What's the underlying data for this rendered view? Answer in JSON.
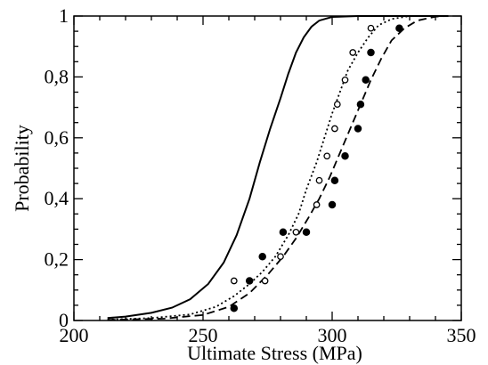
{
  "chart_data": {
    "type": "line",
    "title": "",
    "xlabel": "Ultimate Stress (MPa)",
    "ylabel": "Probability",
    "xlim": [
      200,
      350
    ],
    "ylim": [
      0,
      1
    ],
    "x_ticks": [
      200,
      250,
      300,
      350
    ],
    "x_tick_labels": [
      "200",
      "250",
      "300",
      "350"
    ],
    "y_ticks": [
      0,
      0.2,
      0.4,
      0.6,
      0.8,
      1
    ],
    "y_tick_labels": [
      "0",
      "0,2",
      "0,4",
      "0,6",
      "0,8",
      "1"
    ],
    "grid": false,
    "legend": "none",
    "series": [
      {
        "style": "solid",
        "color": "#000000",
        "points": [
          [
            213,
            0.008
          ],
          [
            220,
            0.013
          ],
          [
            230,
            0.025
          ],
          [
            238,
            0.042
          ],
          [
            245,
            0.07
          ],
          [
            252,
            0.12
          ],
          [
            258,
            0.19
          ],
          [
            263,
            0.28
          ],
          [
            268,
            0.4
          ],
          [
            272,
            0.52
          ],
          [
            276,
            0.63
          ],
          [
            280,
            0.73
          ],
          [
            283,
            0.81
          ],
          [
            286,
            0.88
          ],
          [
            289,
            0.93
          ],
          [
            292,
            0.965
          ],
          [
            295,
            0.985
          ],
          [
            300,
            0.997
          ],
          [
            310,
            1.0
          ],
          [
            345,
            1.0
          ]
        ]
      },
      {
        "style": "dotted",
        "color": "#000000",
        "points": [
          [
            213,
            0.003
          ],
          [
            230,
            0.008
          ],
          [
            245,
            0.02
          ],
          [
            255,
            0.045
          ],
          [
            262,
            0.08
          ],
          [
            268,
            0.12
          ],
          [
            273,
            0.16
          ],
          [
            278,
            0.21
          ],
          [
            283,
            0.28
          ],
          [
            287,
            0.35
          ],
          [
            290,
            0.43
          ],
          [
            294,
            0.52
          ],
          [
            297,
            0.6
          ],
          [
            300,
            0.68
          ],
          [
            303,
            0.75
          ],
          [
            306,
            0.82
          ],
          [
            310,
            0.88
          ],
          [
            314,
            0.93
          ],
          [
            318,
            0.97
          ],
          [
            323,
            0.99
          ],
          [
            330,
            1.0
          ],
          [
            345,
            1.0
          ]
        ]
      },
      {
        "style": "dashed",
        "color": "#000000",
        "points": [
          [
            213,
            0.002
          ],
          [
            235,
            0.006
          ],
          [
            250,
            0.018
          ],
          [
            260,
            0.045
          ],
          [
            268,
            0.09
          ],
          [
            275,
            0.15
          ],
          [
            281,
            0.21
          ],
          [
            286,
            0.27
          ],
          [
            291,
            0.34
          ],
          [
            295,
            0.4
          ],
          [
            299,
            0.47
          ],
          [
            303,
            0.55
          ],
          [
            307,
            0.63
          ],
          [
            311,
            0.71
          ],
          [
            315,
            0.79
          ],
          [
            319,
            0.86
          ],
          [
            323,
            0.92
          ],
          [
            328,
            0.96
          ],
          [
            333,
            0.985
          ],
          [
            340,
            0.998
          ],
          [
            345,
            1.0
          ]
        ]
      }
    ],
    "markers": [
      {
        "symbol": "open-circle",
        "points": [
          [
            262,
            0.13
          ],
          [
            274,
            0.13
          ],
          [
            280,
            0.21
          ],
          [
            286,
            0.29
          ],
          [
            294,
            0.38
          ],
          [
            295,
            0.46
          ],
          [
            298,
            0.54
          ],
          [
            301,
            0.63
          ],
          [
            302,
            0.71
          ],
          [
            305,
            0.79
          ],
          [
            308,
            0.88
          ],
          [
            315,
            0.96
          ]
        ]
      },
      {
        "symbol": "filled-circle",
        "points": [
          [
            262,
            0.04
          ],
          [
            268,
            0.13
          ],
          [
            273,
            0.21
          ],
          [
            281,
            0.29
          ],
          [
            290,
            0.29
          ],
          [
            300,
            0.38
          ],
          [
            301,
            0.46
          ],
          [
            305,
            0.54
          ],
          [
            310,
            0.63
          ],
          [
            311,
            0.71
          ],
          [
            313,
            0.79
          ],
          [
            315,
            0.88
          ],
          [
            326,
            0.96
          ]
        ]
      }
    ]
  }
}
